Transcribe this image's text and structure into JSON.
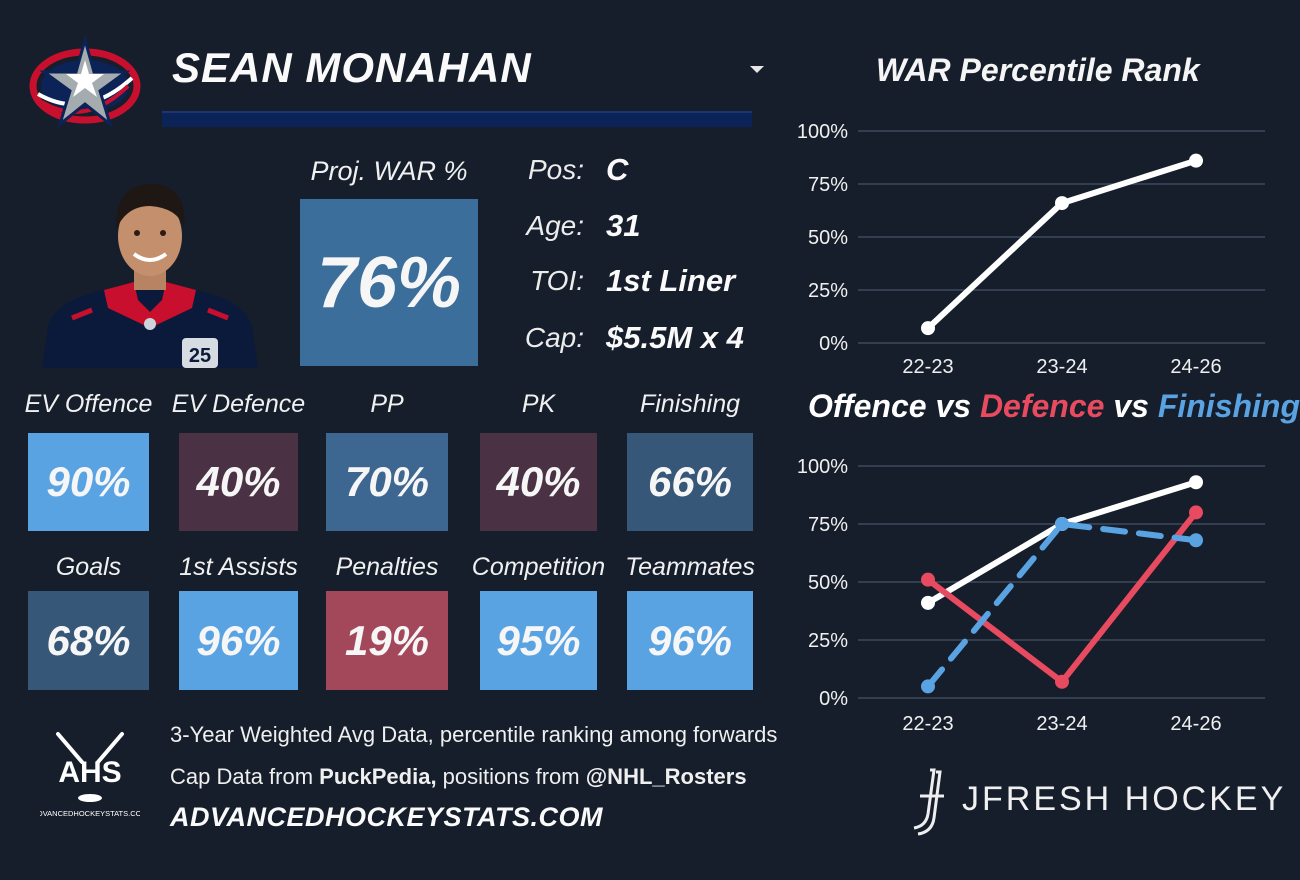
{
  "player": {
    "name": "SEAN MONAHAN",
    "proj_war_label": "Proj. WAR %",
    "proj_war_value": "76%",
    "info": [
      {
        "key": "Pos:",
        "value": "C"
      },
      {
        "key": "Age:",
        "value": "31"
      },
      {
        "key": "TOI:",
        "value": "1st Liner"
      },
      {
        "key": "Cap:",
        "value": "$5.5M x 4"
      }
    ]
  },
  "stats_row1": [
    {
      "label": "EV Offence",
      "value": "90%",
      "color": "#5aa3e3"
    },
    {
      "label": "EV Defence",
      "value": "40%",
      "color": "#4a3244"
    },
    {
      "label": "PP",
      "value": "70%",
      "color": "#3d6790"
    },
    {
      "label": "PK",
      "value": "40%",
      "color": "#4a3244"
    },
    {
      "label": "Finishing",
      "value": "66%",
      "color": "#375778"
    }
  ],
  "stats_row2": [
    {
      "label": "Goals",
      "value": "68%",
      "color": "#375778"
    },
    {
      "label": "1st Assists",
      "value": "96%",
      "color": "#5aa3e3"
    },
    {
      "label": "Penalties",
      "value": "19%",
      "color": "#a3475b"
    },
    {
      "label": "Competition",
      "value": "95%",
      "color": "#5aa3e3"
    },
    {
      "label": "Teammates",
      "value": "96%",
      "color": "#5aa3e3"
    }
  ],
  "colors": {
    "background": "#161e2b",
    "proj_war_tile": "#3c6e9c",
    "offence": "#ffffff",
    "defence": "#e84a5f",
    "finishing": "#5aa3e3",
    "name_bar": "#0b2356"
  },
  "footer": {
    "logo_text": "AHS",
    "logo_subtext": "ADVANCEDHOCKEYSTATS.COM",
    "line1": "3-Year Weighted Avg Data, percentile ranking among forwards",
    "line2_prefix": "Cap Data from ",
    "line2_bold1": "PuckPedia,",
    "line2_mid": " positions from ",
    "line2_bold2": "@NHL_Rosters",
    "url": "ADVANCEDHOCKEYSTATS.COM",
    "brand": "JFRESH HOCKEY"
  },
  "chart_data": [
    {
      "type": "line",
      "title": "WAR Percentile Rank",
      "categories": [
        "22-23",
        "23-24",
        "24-26"
      ],
      "series": [
        {
          "values": [
            7,
            66,
            86
          ],
          "color": "#ffffff"
        }
      ],
      "ylim": [
        0,
        100
      ],
      "yticks": [
        "0%",
        "25%",
        "50%",
        "75%",
        "100%"
      ],
      "grid": true
    },
    {
      "type": "line",
      "title_parts": [
        "Offence",
        "vs",
        "Defence",
        "vs",
        "Finishing"
      ],
      "categories": [
        "22-23",
        "23-24",
        "24-26"
      ],
      "series": [
        {
          "name": "Offence",
          "values": [
            41,
            75,
            93
          ],
          "color": "#ffffff",
          "dash": false
        },
        {
          "name": "Defence",
          "values": [
            51,
            7,
            80
          ],
          "color": "#e84a5f",
          "dash": false
        },
        {
          "name": "Finishing",
          "values": [
            5,
            75,
            68
          ],
          "color": "#5aa3e3",
          "dash": true
        }
      ],
      "ylim": [
        0,
        100
      ],
      "yticks": [
        "0%",
        "25%",
        "50%",
        "75%",
        "100%"
      ],
      "grid": true
    }
  ]
}
